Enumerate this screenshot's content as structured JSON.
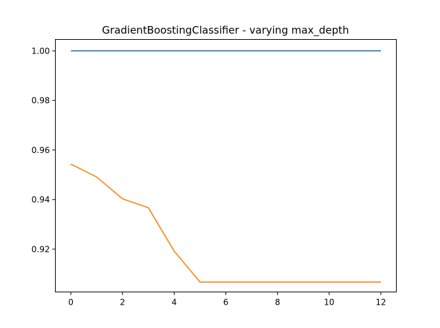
{
  "chart_data": {
    "type": "line",
    "title": "GradientBoostingClassifier - varying max_depth",
    "xlabel": "",
    "ylabel": "",
    "xlim": [
      -0.6,
      12.6
    ],
    "ylim": [
      0.9027,
      1.0046
    ],
    "x": [
      0,
      1,
      2,
      3,
      4,
      5,
      6,
      7,
      8,
      9,
      10,
      11,
      12
    ],
    "xticks": [
      0,
      2,
      4,
      6,
      8,
      10,
      12
    ],
    "yticks": [
      0.92,
      0.94,
      0.96,
      0.98,
      1.0
    ],
    "xtick_labels": [
      "0",
      "2",
      "4",
      "6",
      "8",
      "10",
      "12"
    ],
    "ytick_labels": [
      "0.92",
      "0.94",
      "0.96",
      "0.98",
      "1.00"
    ],
    "grid": false,
    "series": [
      {
        "color": "#1f77b4",
        "values": [
          1.0,
          1.0,
          1.0,
          1.0,
          1.0,
          1.0,
          1.0,
          1.0,
          1.0,
          1.0,
          1.0,
          1.0,
          1.0
        ]
      },
      {
        "color": "#ff7f0e",
        "values": [
          0.9543,
          0.9491,
          0.9403,
          0.9367,
          0.9192,
          0.9067,
          0.9067,
          0.9067,
          0.9067,
          0.9067,
          0.9067,
          0.9067,
          0.9067
        ]
      }
    ]
  }
}
